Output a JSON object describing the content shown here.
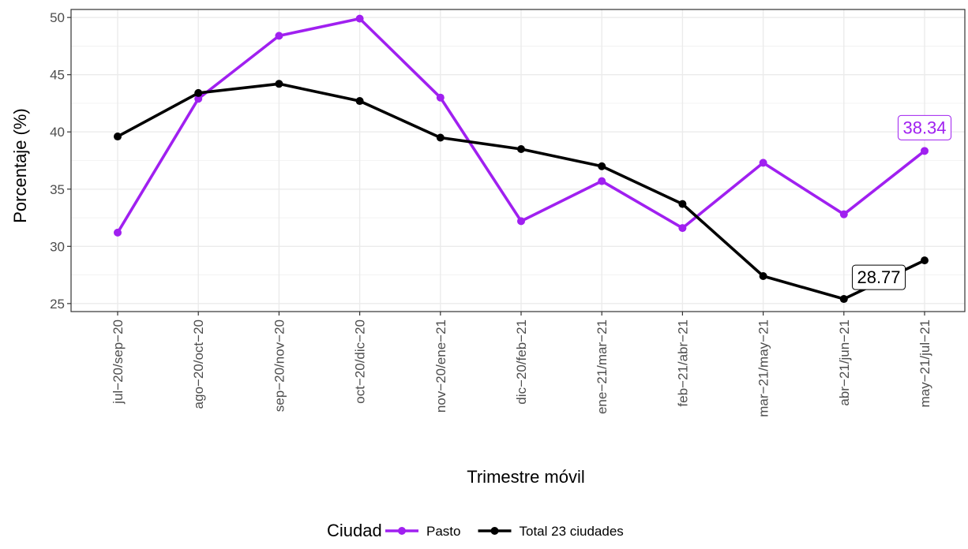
{
  "chart_data": {
    "type": "line",
    "xlabel": "Trimestre móvil",
    "ylabel": "Porcentaje (%)",
    "categories": [
      "jul−20/sep−20",
      "ago−20/oct−20",
      "sep−20/nov−20",
      "oct−20/dic−20",
      "nov−20/ene−21",
      "dic−20/feb−21",
      "ene−21/mar−21",
      "feb−21/abr−21",
      "mar−21/may−21",
      "abr−21/jun−21",
      "may−21/jul−21"
    ],
    "ylim": [
      24.3,
      50.7
    ],
    "yticks": [
      25,
      30,
      35,
      40,
      45,
      50
    ],
    "grid": true,
    "legend_title": "Ciudad",
    "legend_position": "bottom",
    "series": [
      {
        "name": "Pasto",
        "color": "#a020f0",
        "values": [
          31.2,
          42.9,
          48.4,
          49.9,
          43.0,
          32.2,
          35.7,
          31.6,
          37.3,
          32.8,
          38.34
        ]
      },
      {
        "name": "Total 23 ciudades",
        "color": "#000000",
        "values": [
          39.6,
          43.4,
          44.2,
          42.7,
          39.5,
          38.5,
          37.0,
          33.7,
          27.4,
          25.4,
          28.77
        ]
      }
    ],
    "annotations": [
      {
        "series": "Pasto",
        "label": "38.34",
        "color": "#a020f0"
      },
      {
        "series": "Total 23 ciudades",
        "label": "28.77",
        "color": "#000000"
      }
    ]
  }
}
